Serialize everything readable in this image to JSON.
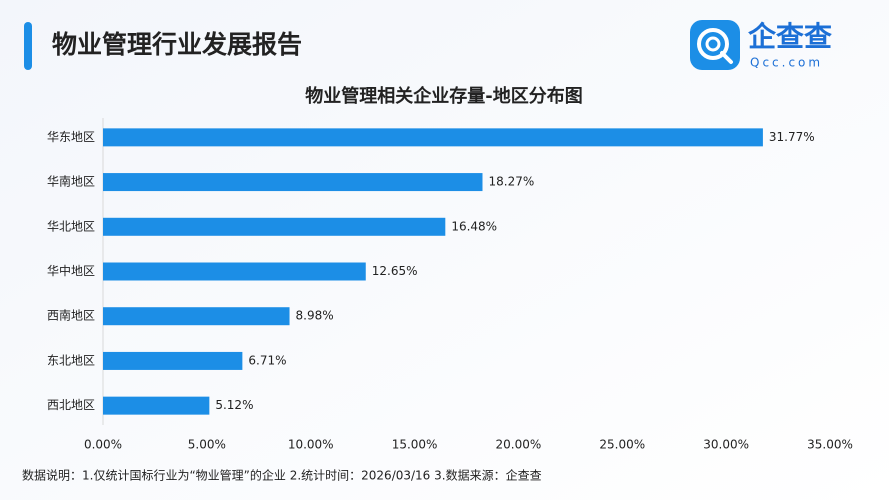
{
  "header": {
    "title": "物业管理行业发展报告"
  },
  "logo": {
    "name": "企查查",
    "domain": "Qcc.com"
  },
  "chart_data": {
    "type": "bar",
    "orientation": "horizontal",
    "title": "物业管理相关企业存量-地区分布图",
    "categories": [
      "华东地区",
      "华南地区",
      "华北地区",
      "华中地区",
      "西南地区",
      "东北地区",
      "西北地区"
    ],
    "values": [
      31.77,
      18.27,
      16.48,
      12.65,
      8.98,
      6.71,
      5.12
    ],
    "value_labels": [
      "31.77%",
      "18.27%",
      "16.48%",
      "12.65%",
      "8.98%",
      "6.71%",
      "5.12%"
    ],
    "color": "#1c8ee6",
    "xlim": [
      0,
      35
    ],
    "xticks": [
      {
        "value": 0,
        "label": "0.00%"
      },
      {
        "value": 5,
        "label": "5.00%"
      },
      {
        "value": 10,
        "label": "10.00%"
      },
      {
        "value": 15,
        "label": "15.00%"
      },
      {
        "value": 20,
        "label": "20.00%"
      },
      {
        "value": 25,
        "label": "25.00%"
      },
      {
        "value": 30,
        "label": "30.00%"
      },
      {
        "value": 35,
        "label": "35.00%"
      }
    ]
  },
  "footer": {
    "note": "数据说明：1.仅统计国标行业为“物业管理”的企业  2.统计时间：2026/03/16   3.数据来源：企查查"
  }
}
